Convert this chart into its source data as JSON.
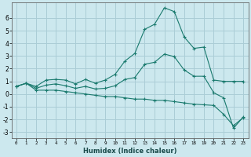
{
  "xlabel": "Humidex (Indice chaleur)",
  "background_color": "#cce8ee",
  "grid_color": "#aacdd6",
  "line_color": "#1a7a6e",
  "xlim": [
    -0.5,
    23.5
  ],
  "ylim": [
    -3.5,
    7.2
  ],
  "yticks": [
    -3,
    -2,
    -1,
    0,
    1,
    2,
    3,
    4,
    5,
    6
  ],
  "xticks": [
    0,
    1,
    2,
    3,
    4,
    5,
    6,
    7,
    8,
    9,
    10,
    11,
    12,
    13,
    14,
    15,
    16,
    17,
    18,
    19,
    20,
    21,
    22,
    23
  ],
  "series1_x": [
    0,
    1,
    2,
    3,
    4,
    5,
    6,
    7,
    8,
    9,
    10,
    11,
    12,
    13,
    14,
    15,
    16,
    17,
    18,
    19,
    20,
    21,
    22,
    23
  ],
  "series1_y": [
    0.6,
    0.85,
    0.6,
    1.1,
    1.15,
    1.1,
    0.8,
    1.15,
    0.85,
    1.1,
    1.55,
    2.6,
    3.2,
    5.1,
    5.5,
    6.8,
    6.5,
    4.5,
    3.6,
    3.7,
    1.1,
    1.0,
    1.0,
    1.0
  ],
  "series2_x": [
    0,
    1,
    2,
    3,
    4,
    5,
    6,
    7,
    8,
    9,
    10,
    11,
    12,
    13,
    14,
    15,
    16,
    17,
    18,
    19,
    20,
    21,
    22,
    23
  ],
  "series2_y": [
    0.6,
    0.85,
    0.3,
    0.3,
    0.3,
    0.2,
    0.1,
    0.0,
    -0.1,
    -0.2,
    -0.2,
    -0.3,
    -0.4,
    -0.4,
    -0.5,
    -0.5,
    -0.6,
    -0.7,
    -0.8,
    -0.85,
    -0.9,
    -1.6,
    -2.5,
    -1.85
  ],
  "series3_x": [
    0,
    1,
    2,
    3,
    4,
    5,
    6,
    7,
    8,
    9,
    10,
    11,
    12,
    13,
    14,
    15,
    16,
    17,
    18,
    19,
    20,
    21,
    22,
    23
  ],
  "series3_y": [
    0.6,
    0.85,
    0.45,
    0.7,
    0.8,
    0.65,
    0.45,
    0.6,
    0.4,
    0.45,
    0.65,
    1.15,
    1.3,
    2.35,
    2.5,
    3.15,
    2.95,
    1.9,
    1.4,
    1.4,
    0.1,
    -0.3,
    -2.7,
    -1.8
  ]
}
